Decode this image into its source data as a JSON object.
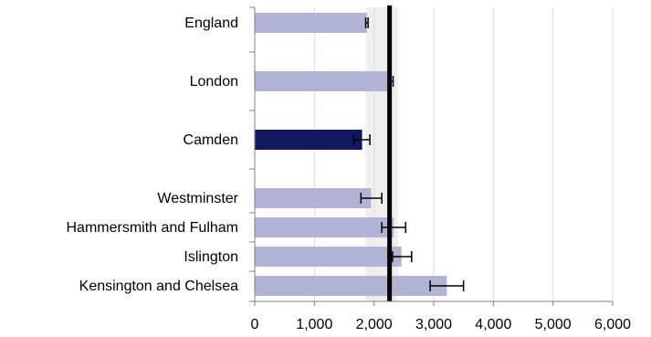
{
  "chart_data": {
    "type": "bar",
    "orientation": "horizontal",
    "title": "",
    "xlabel": "",
    "ylabel": "",
    "xlim": [
      0,
      6000
    ],
    "xticks": [
      0,
      1000,
      2000,
      3000,
      4000,
      5000,
      6000
    ],
    "xtick_labels": [
      "0",
      "1,000",
      "2,000",
      "3,000",
      "4,000",
      "5,000",
      "6,000"
    ],
    "grid": "vertical",
    "categories": [
      "England",
      "London",
      "Camden",
      "Westminster",
      "Hammersmith and Fulham",
      "Islington",
      "Kensington and Chelsea"
    ],
    "values": [
      1880,
      2280,
      1800,
      1950,
      2330,
      2460,
      3220
    ],
    "error_low": [
      1860,
      2240,
      1660,
      1780,
      2130,
      2310,
      2940
    ],
    "error_high": [
      1900,
      2320,
      1930,
      2130,
      2530,
      2630,
      3500
    ],
    "highlight": "Camden",
    "reference_line": 2260,
    "reference_band": [
      1860,
      2400
    ],
    "colors": {
      "bar": "#b3b3d6",
      "highlight": "#11185e",
      "reference_line": "#000000",
      "band": "#efefef",
      "grid": "#dddddd"
    }
  }
}
